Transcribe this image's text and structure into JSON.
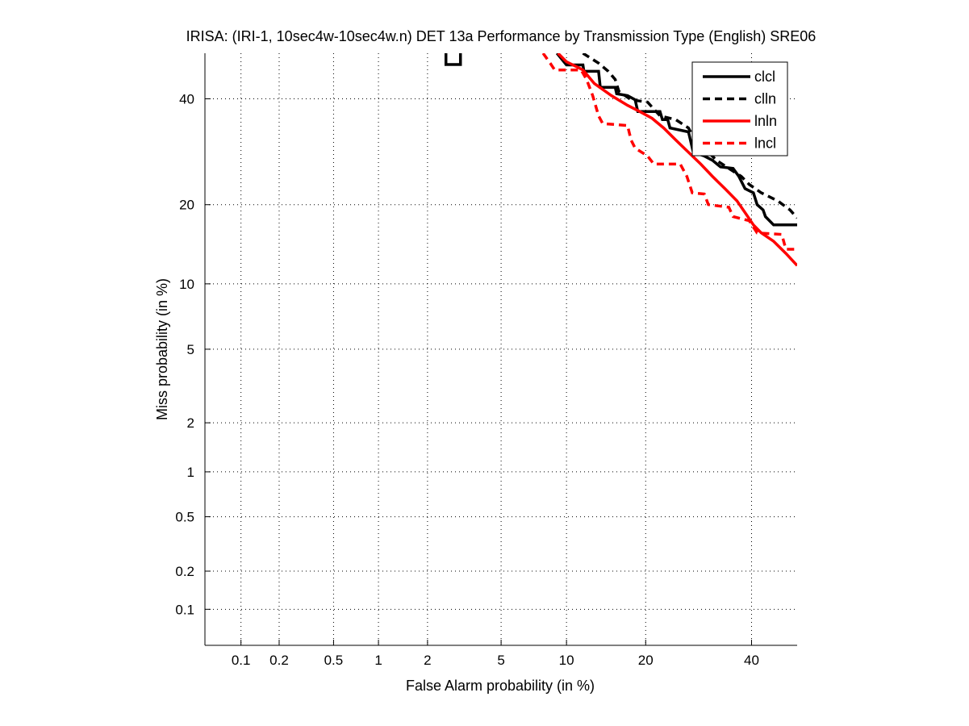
{
  "chart_data": {
    "type": "line",
    "scale": "normal-deviate (DET)",
    "title": "IRISA: (IRI-1, 10sec4w-10sec4w.n) DET 13a Performance by Transmission Type (English) SRE06",
    "xlabel": "False Alarm probability (in %)",
    "ylabel": "Miss probability (in %)",
    "xlim": [
      0.05,
      50
    ],
    "ylim": [
      0.05,
      50
    ],
    "grid": true,
    "x_ticks": [
      0.1,
      0.2,
      0.5,
      1,
      2,
      5,
      10,
      20,
      40
    ],
    "x_tick_labels": [
      "0.1",
      "0.2",
      "0.5",
      "1",
      "2",
      "5",
      "10",
      "20",
      "40"
    ],
    "y_ticks": [
      0.1,
      0.2,
      0.5,
      1,
      2,
      5,
      10,
      20,
      40
    ],
    "y_tick_labels": [
      "0.1",
      "0.2",
      "0.5",
      "1",
      "2",
      "5",
      "10",
      "20",
      "40"
    ],
    "legend_position": "top-right",
    "series": [
      {
        "name": "clcl",
        "color": "#000000",
        "style": "solid",
        "points": [
          [
            9.1,
            50
          ],
          [
            10.0,
            47.4
          ],
          [
            11.7,
            47.4
          ],
          [
            11.8,
            46.0
          ],
          [
            13.5,
            46.0
          ],
          [
            13.7,
            42.5
          ],
          [
            15.6,
            42.5
          ],
          [
            15.8,
            41.1
          ],
          [
            17.3,
            40.7
          ],
          [
            18.4,
            39.8
          ],
          [
            18.8,
            37.3
          ],
          [
            22.3,
            37.3
          ],
          [
            22.7,
            35.6
          ],
          [
            23.6,
            35.6
          ],
          [
            24.0,
            33.9
          ],
          [
            27.3,
            33.1
          ],
          [
            28.2,
            29.1
          ],
          [
            30.3,
            28.4
          ],
          [
            31.9,
            27.6
          ],
          [
            33.5,
            26.4
          ],
          [
            36.1,
            26.1
          ],
          [
            37.3,
            24.7
          ],
          [
            38.6,
            22.6
          ],
          [
            40.4,
            21.9
          ],
          [
            41.2,
            20.0
          ],
          [
            42.5,
            19.2
          ],
          [
            43.0,
            18.2
          ],
          [
            44.8,
            17.0
          ],
          [
            50,
            17.0
          ]
        ]
      },
      {
        "name": "clln",
        "color": "#000000",
        "style": "dashed",
        "points": [
          [
            11.7,
            50
          ],
          [
            13.5,
            47.8
          ],
          [
            14.7,
            46.0
          ],
          [
            15.6,
            44.2
          ],
          [
            16.1,
            41.6
          ],
          [
            17.8,
            39.8
          ],
          [
            20.3,
            39.3
          ],
          [
            22.3,
            36.4
          ],
          [
            25.0,
            35.6
          ],
          [
            27.3,
            33.9
          ],
          [
            28.5,
            31.5
          ],
          [
            30.3,
            29.9
          ],
          [
            32.7,
            27.6
          ],
          [
            35.2,
            26.1
          ],
          [
            37.8,
            24.7
          ],
          [
            39.5,
            23.3
          ],
          [
            42.1,
            21.9
          ],
          [
            45.7,
            20.6
          ],
          [
            48.4,
            19.2
          ],
          [
            50,
            18.0
          ]
        ]
      },
      {
        "name": "lnln",
        "color": "#ff0000",
        "style": "solid",
        "points": [
          [
            9.2,
            50
          ],
          [
            10.0,
            48.1
          ],
          [
            11.7,
            46.3
          ],
          [
            13.0,
            43.3
          ],
          [
            15.1,
            40.7
          ],
          [
            17.3,
            38.6
          ],
          [
            19.1,
            37.3
          ],
          [
            21.0,
            35.9
          ],
          [
            22.9,
            33.9
          ],
          [
            25.0,
            31.5
          ],
          [
            27.3,
            29.1
          ],
          [
            29.6,
            26.9
          ],
          [
            31.9,
            24.7
          ],
          [
            34.4,
            22.6
          ],
          [
            36.9,
            20.6
          ],
          [
            38.6,
            18.8
          ],
          [
            40.4,
            17.0
          ],
          [
            42.1,
            15.9
          ],
          [
            44.8,
            14.8
          ],
          [
            47.5,
            13.3
          ],
          [
            50,
            11.9
          ]
        ]
      },
      {
        "name": "lncl",
        "color": "#ff0000",
        "style": "dashed",
        "points": [
          [
            7.9,
            50
          ],
          [
            8.5,
            47.8
          ],
          [
            8.9,
            46.3
          ],
          [
            11.5,
            46.3
          ],
          [
            12.1,
            44.2
          ],
          [
            12.8,
            40.7
          ],
          [
            13.5,
            36.4
          ],
          [
            14.0,
            34.8
          ],
          [
            17.3,
            34.4
          ],
          [
            17.8,
            31.5
          ],
          [
            18.4,
            29.9
          ],
          [
            20.3,
            28.4
          ],
          [
            21.3,
            26.9
          ],
          [
            25.8,
            26.9
          ],
          [
            27.0,
            24.7
          ],
          [
            28.0,
            21.9
          ],
          [
            30.3,
            21.7
          ],
          [
            31.1,
            20.0
          ],
          [
            35.2,
            19.6
          ],
          [
            36.1,
            18.2
          ],
          [
            39.5,
            17.6
          ],
          [
            41.2,
            15.9
          ],
          [
            46.6,
            15.7
          ],
          [
            47.5,
            13.8
          ],
          [
            50,
            13.8
          ]
        ]
      }
    ],
    "markers": [
      {
        "name": "decision-point-marker",
        "shape": "open-square",
        "color": "#000000",
        "x": 2.8,
        "y": 47.5
      }
    ]
  }
}
